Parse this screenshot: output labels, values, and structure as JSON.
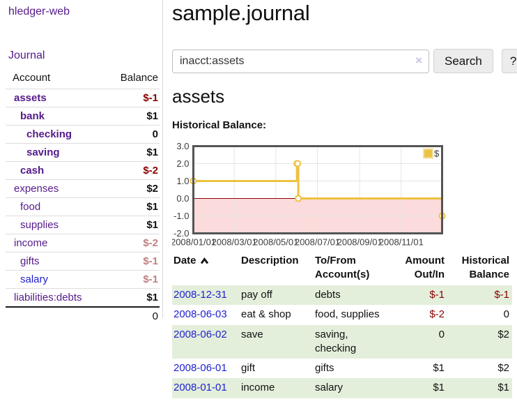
{
  "app": {
    "brand": "hledger-web",
    "nav_journal": "Journal"
  },
  "sidebar": {
    "account_header": "Account",
    "balance_header": "Balance",
    "accounts": [
      {
        "name": "assets",
        "depth": 0,
        "bold": true,
        "link_color": "purple",
        "balance": "$-1",
        "balance_style": "neg"
      },
      {
        "name": "bank",
        "depth": 1,
        "bold": true,
        "link_color": "purple",
        "balance": "$1",
        "balance_style": "pos"
      },
      {
        "name": "checking",
        "depth": 2,
        "bold": true,
        "link_color": "purple",
        "balance": "0",
        "balance_style": "pos"
      },
      {
        "name": "saving",
        "depth": 2,
        "bold": true,
        "link_color": "purple",
        "balance": "$1",
        "balance_style": "pos"
      },
      {
        "name": "cash",
        "depth": 1,
        "bold": true,
        "link_color": "purple",
        "balance": "$-2",
        "balance_style": "neg"
      },
      {
        "name": "expenses",
        "depth": 0,
        "bold": false,
        "link_color": "purple",
        "balance": "$2",
        "balance_style": "pos"
      },
      {
        "name": "food",
        "depth": 1,
        "bold": false,
        "link_color": "purple",
        "balance": "$1",
        "balance_style": "pos"
      },
      {
        "name": "supplies",
        "depth": 1,
        "bold": false,
        "link_color": "purple",
        "balance": "$1",
        "balance_style": "pos"
      },
      {
        "name": "income",
        "depth": 0,
        "bold": false,
        "link_color": "purple",
        "balance": "$-2",
        "balance_style": "neg-faded"
      },
      {
        "name": "gifts",
        "depth": 1,
        "bold": false,
        "link_color": "purple",
        "balance": "$-1",
        "balance_style": "neg-faded"
      },
      {
        "name": "salary",
        "depth": 1,
        "bold": false,
        "link_color": "blue",
        "balance": "$-1",
        "balance_style": "neg-faded"
      },
      {
        "name": "liabilities:debts",
        "depth": 0,
        "bold": false,
        "link_color": "purple",
        "balance": "$1",
        "balance_style": "pos"
      }
    ],
    "total": "0"
  },
  "main": {
    "title": "sample.journal",
    "search": {
      "value": "inacct:assets",
      "clear_icon": "×",
      "button_label": "Search",
      "help_label": "?"
    },
    "account_heading": "assets",
    "chart_heading": "Historical Balance:"
  },
  "chart_data": {
    "type": "line",
    "title": "Historical Balance",
    "step": true,
    "grid": true,
    "legend_position": "top-right",
    "x_range": [
      "2008-01-01",
      "2008-12-31"
    ],
    "ylim": [
      -2,
      3
    ],
    "y_ticks": [
      3,
      2,
      1,
      0,
      -1,
      -2
    ],
    "x_ticks": [
      "2008-01-01",
      "2008-03-01",
      "2008-05-01",
      "2008-07-01",
      "2008-09-01",
      "2008-11-01"
    ],
    "x_tick_labels": [
      "2008/01/01",
      "2008/03/01",
      "2008/05/01",
      "2008/07/01",
      "2008/09/01",
      "2008/11/01"
    ],
    "series": [
      {
        "name": "$",
        "color": "#edc240",
        "points": [
          [
            "2008-01-01",
            1
          ],
          [
            "2008-06-01",
            2
          ],
          [
            "2008-06-02",
            2
          ],
          [
            "2008-06-03",
            0
          ],
          [
            "2008-12-31",
            -1
          ]
        ]
      }
    ],
    "zero_line_color": "#8b0000",
    "negative_region_color": "#fbdbdb",
    "grid_color": "#e5e5e5",
    "border_color": "#545454"
  },
  "register": {
    "headers": {
      "date": "Date",
      "description": "Description",
      "accounts": "To/From Account(s)",
      "amount": "Amount Out/In",
      "balance": "Historical Balance"
    },
    "rows": [
      {
        "date": "2008-12-31",
        "description": "pay off",
        "accounts": "debts",
        "amount": "$-1",
        "amount_neg": true,
        "balance": "$-1",
        "balance_neg": true
      },
      {
        "date": "2008-06-03",
        "description": "eat & shop",
        "accounts": "food, supplies",
        "amount": "$-2",
        "amount_neg": true,
        "balance": "0",
        "balance_neg": false
      },
      {
        "date": "2008-06-02",
        "description": "save",
        "accounts": "saving, checking",
        "amount": "0",
        "amount_neg": false,
        "balance": "$2",
        "balance_neg": false
      },
      {
        "date": "2008-06-01",
        "description": "gift",
        "accounts": "gifts",
        "amount": "$1",
        "amount_neg": false,
        "balance": "$2",
        "balance_neg": false
      },
      {
        "date": "2008-01-01",
        "description": "income",
        "accounts": "salary",
        "amount": "$1",
        "amount_neg": false,
        "balance": "$1",
        "balance_neg": false
      }
    ]
  },
  "colors": {
    "link_purple": "#551a8b",
    "link_blue": "#1f1fd1",
    "negative_red": "#8b0000",
    "negative_faded": "#c08181",
    "row_green": "#e3efdb",
    "series_gold": "#edc240",
    "negative_region_pink": "#fbdbdb"
  }
}
